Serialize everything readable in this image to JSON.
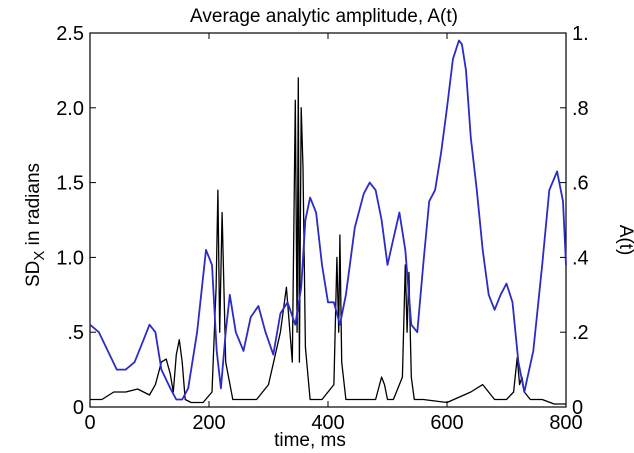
{
  "chart_data": {
    "type": "line",
    "title": "Average analytic amplitude, A(t)",
    "xlabel": "time, ms",
    "ylabel_left_main": "SD",
    "ylabel_left_sub": "X",
    "ylabel_left_rest": " in radians",
    "ylabel_right": "A(t)",
    "xlim": [
      0,
      800
    ],
    "ylim_left": [
      0,
      2.5
    ],
    "ylim_right": [
      0,
      1.0
    ],
    "x_ticks": [
      0,
      200,
      400,
      600,
      800
    ],
    "x_tick_labels": [
      "0",
      "200",
      "400",
      "600",
      "800"
    ],
    "y_left_ticks": [
      0,
      0.5,
      1.0,
      1.5,
      2.0,
      2.5
    ],
    "y_left_tick_labels": [
      "0",
      ".5",
      "1.0",
      "1.5",
      "2.0",
      "2.5"
    ],
    "y_right_ticks": [
      0,
      0.2,
      0.4,
      0.6,
      0.8,
      1.0
    ],
    "y_right_tick_labels": [
      "0",
      ".2",
      ".4",
      ".6",
      ".8",
      "1."
    ],
    "grid": false,
    "series": [
      {
        "axis": "left",
        "color": "#000000",
        "x": [
          0,
          20,
          40,
          60,
          80,
          100,
          110,
          120,
          128,
          135,
          140,
          145,
          150,
          155,
          160,
          170,
          190,
          205,
          212,
          215,
          218,
          222,
          228,
          240,
          280,
          300,
          320,
          330,
          340,
          345,
          348,
          350,
          352,
          355,
          358,
          362,
          370,
          390,
          410,
          415,
          418,
          420,
          423,
          430,
          450,
          470,
          480,
          490,
          495,
          500,
          510,
          525,
          530,
          533,
          536,
          540,
          545,
          560,
          600,
          640,
          660,
          680,
          700,
          712,
          718,
          722,
          726,
          730,
          740,
          760,
          780,
          800
        ],
        "y": [
          0.05,
          0.05,
          0.1,
          0.1,
          0.12,
          0.08,
          0.15,
          0.3,
          0.32,
          0.22,
          0.1,
          0.35,
          0.45,
          0.3,
          0.05,
          0.03,
          0.03,
          0.1,
          0.8,
          1.45,
          0.5,
          1.3,
          0.3,
          0.05,
          0.05,
          0.15,
          0.5,
          0.8,
          0.3,
          2.05,
          0.5,
          2.2,
          0.3,
          2.0,
          1.6,
          0.4,
          0.05,
          0.05,
          0.15,
          1.0,
          0.5,
          1.15,
          0.3,
          0.05,
          0.05,
          0.05,
          0.05,
          0.2,
          0.15,
          0.05,
          0.05,
          0.2,
          0.95,
          0.5,
          0.9,
          0.2,
          0.05,
          0.05,
          0.03,
          0.1,
          0.15,
          0.05,
          0.05,
          0.1,
          0.33,
          0.15,
          0.2,
          0.1,
          0.05,
          0.05,
          0.02,
          0.02
        ]
      },
      {
        "axis": "right",
        "color": "#2b2bc8",
        "x": [
          0,
          15,
          30,
          45,
          60,
          75,
          90,
          100,
          110,
          120,
          135,
          145,
          155,
          165,
          180,
          195,
          205,
          213,
          220,
          228,
          235,
          245,
          258,
          270,
          283,
          295,
          308,
          320,
          332,
          345,
          355,
          362,
          370,
          380,
          390,
          400,
          410,
          420,
          430,
          445,
          460,
          470,
          480,
          490,
          500,
          510,
          520,
          530,
          540,
          550,
          560,
          570,
          580,
          590,
          600,
          610,
          620,
          625,
          632,
          640,
          650,
          660,
          670,
          680,
          690,
          700,
          710,
          720,
          730,
          745,
          760,
          772,
          785,
          795,
          800
        ],
        "y": [
          0.22,
          0.2,
          0.15,
          0.1,
          0.1,
          0.12,
          0.18,
          0.22,
          0.2,
          0.1,
          0.05,
          0.02,
          0.02,
          0.05,
          0.2,
          0.42,
          0.38,
          0.15,
          0.05,
          0.2,
          0.3,
          0.2,
          0.15,
          0.24,
          0.27,
          0.2,
          0.14,
          0.25,
          0.28,
          0.22,
          0.32,
          0.5,
          0.56,
          0.52,
          0.38,
          0.28,
          0.28,
          0.22,
          0.3,
          0.48,
          0.57,
          0.6,
          0.58,
          0.5,
          0.38,
          0.45,
          0.52,
          0.42,
          0.22,
          0.2,
          0.38,
          0.55,
          0.58,
          0.68,
          0.8,
          0.93,
          0.98,
          0.97,
          0.9,
          0.72,
          0.58,
          0.42,
          0.3,
          0.26,
          0.3,
          0.33,
          0.28,
          0.12,
          0.04,
          0.15,
          0.38,
          0.58,
          0.63,
          0.55,
          0.38
        ]
      }
    ]
  }
}
